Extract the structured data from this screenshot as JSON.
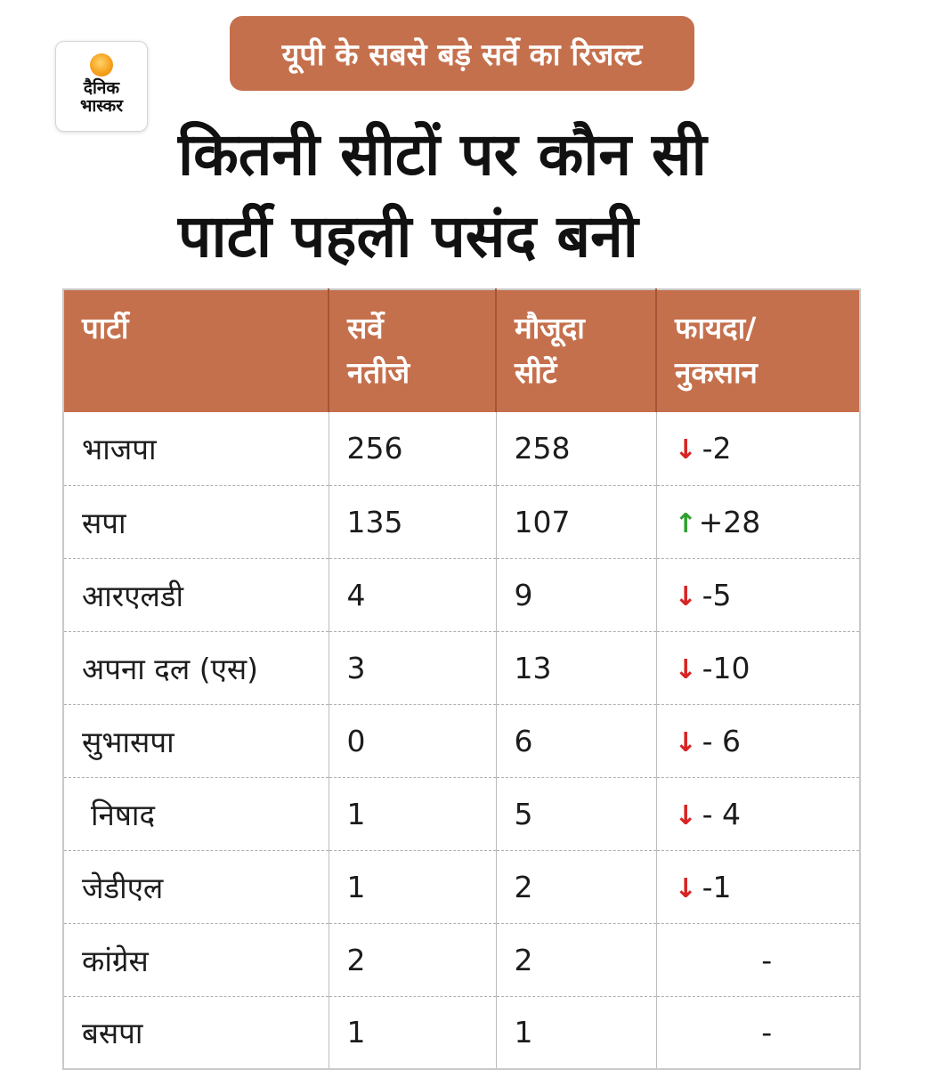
{
  "banner": "यूपी के सबसे बड़े सर्वे का रिजल्ट",
  "logo": {
    "line1": "दैनिक",
    "line2": "भास्कर"
  },
  "headline": {
    "line1": "कितनी सीटों पर कौन सी",
    "line2": "पार्टी पहली पसंद बनी"
  },
  "table": {
    "headers": {
      "party": "पार्टी",
      "survey": [
        "सर्वे",
        "नतीजे"
      ],
      "current": [
        "मौजूदा",
        "सीटें"
      ],
      "change": [
        "फायदा/",
        "नुकसान"
      ]
    },
    "rows": [
      {
        "party": "भाजपा",
        "survey": "256",
        "current": "258",
        "direction": "down",
        "change": "-2"
      },
      {
        "party": "सपा",
        "survey": "135",
        "current": "107",
        "direction": "up",
        "change": "+28"
      },
      {
        "party": "आरएलडी",
        "survey": "4",
        "current": "9",
        "direction": "down",
        "change": "-5"
      },
      {
        "party": "अपना दल (एस)",
        "survey": "3",
        "current": "13",
        "direction": "down",
        "change": "-10"
      },
      {
        "party": "सुभासपा",
        "survey": "0",
        "current": "6",
        "direction": "down",
        "change": "- 6"
      },
      {
        "party": "निषाद",
        "survey": "1",
        "current": "5",
        "direction": "down",
        "change": "- 4"
      },
      {
        "party": "जेडीएल",
        "survey": "1",
        "current": "2",
        "direction": "down",
        "change": "-1"
      },
      {
        "party": "कांग्रेस",
        "survey": "2",
        "current": "2",
        "direction": "none",
        "change": "-"
      },
      {
        "party": "बसपा",
        "survey": "1",
        "current": "1",
        "direction": "none",
        "change": "-"
      }
    ]
  },
  "colors": {
    "accent": "#c5704d",
    "down": "#d82323",
    "up": "#2fa02f"
  },
  "icons": {
    "down": "arrow-down-icon",
    "up": "arrow-up-icon",
    "logo": "sun-icon"
  }
}
